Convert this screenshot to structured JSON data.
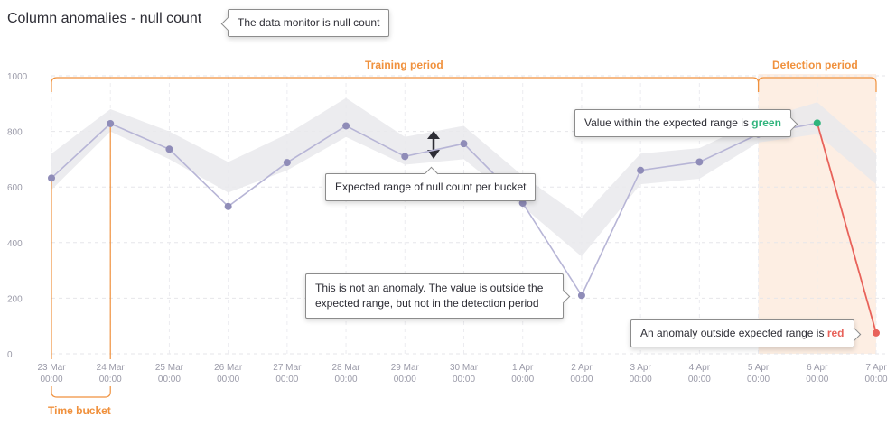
{
  "title": "Column anomalies - null count",
  "callouts": {
    "monitor": "The data monitor is null count",
    "range": "Expected range of null count per bucket",
    "not_anomaly": "This is not an anomaly. The value is outside the expected range, but not in the detection period",
    "green_prefix": "Value within the expected range is ",
    "green_word": "green",
    "red_prefix": "An anomaly outside expected range is ",
    "red_word": "red"
  },
  "periods": {
    "training": "Training period",
    "detection": "Detection period",
    "bucket": "Time bucket"
  },
  "colors": {
    "line": "#b7b5d6",
    "point": "#8f8cb8",
    "band": "#e9e9ec",
    "orange": "#f0913d",
    "detection_fill": "#fdeee3",
    "green": "#2fb47c",
    "red": "#e8625a"
  },
  "chart_data": {
    "type": "line",
    "categories": [
      "23 Mar 00:00",
      "24 Mar 00:00",
      "25 Mar 00:00",
      "26 Mar 00:00",
      "27 Mar 00:00",
      "28 Mar 00:00",
      "29 Mar 00:00",
      "30 Mar 00:00",
      "1 Apr 00:00",
      "2 Apr 00:00",
      "3 Apr 00:00",
      "4 Apr 00:00",
      "5 Apr 00:00",
      "6 Apr 00:00",
      "7 Apr 00:00"
    ],
    "values": [
      632,
      828,
      736,
      530,
      688,
      820,
      710,
      756,
      542,
      210,
      660,
      690,
      790,
      830,
      75
    ],
    "band_upper": [
      720,
      880,
      800,
      690,
      790,
      920,
      780,
      820,
      640,
      490,
      720,
      740,
      840,
      905,
      720
    ],
    "band_lower": [
      590,
      800,
      700,
      580,
      660,
      780,
      680,
      700,
      530,
      350,
      610,
      630,
      760,
      790,
      610
    ],
    "ylim": [
      0,
      1000
    ],
    "yticks": [
      0,
      200,
      400,
      600,
      800,
      1000
    ],
    "grid": true,
    "training_period": [
      "23 Mar 00:00",
      "5 Apr 00:00"
    ],
    "detection_period": [
      "5 Apr 00:00",
      "7 Apr 00:00"
    ],
    "anomaly_index": 14,
    "normal_detection_index": 13
  }
}
